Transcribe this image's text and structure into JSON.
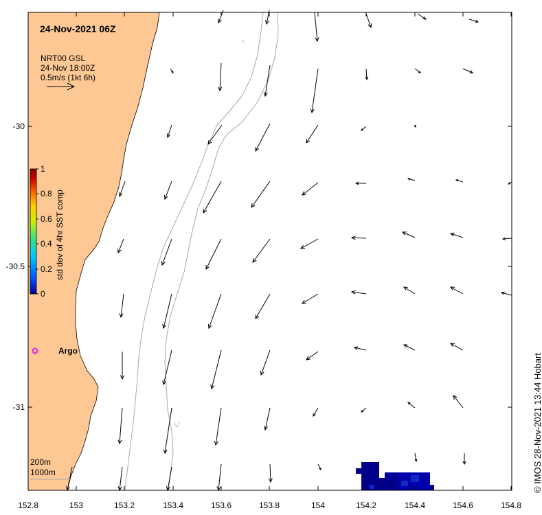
{
  "title": "24-Nov-2021 06Z",
  "vector_legend": {
    "product": "NRT00 GSL",
    "time": "24-Nov 18:00Z",
    "scale": "0.5m/s (1kt 6h)"
  },
  "colorbar": {
    "label": "std dev of 4hr SST comp",
    "ticks": [
      "0",
      "0.2",
      "0.4",
      "0.6",
      "0.8",
      "1"
    ],
    "colors": [
      "#00008b",
      "#0050ff",
      "#00c8ff",
      "#40e080",
      "#c8f000",
      "#ffd000",
      "#ff6000",
      "#d00000",
      "#800000"
    ]
  },
  "axes": {
    "x_ticks": [
      "152.8",
      "153",
      "153.2",
      "153.4",
      "153.6",
      "153.8",
      "154",
      "154.2",
      "154.4",
      "154.6",
      "154.8"
    ],
    "y_ticks": [
      "-30",
      "-30.5",
      "-31"
    ],
    "xlim": [
      152.8,
      154.8
    ],
    "ylim": [
      -31.3,
      -29.59
    ]
  },
  "argo": {
    "label": "Argo",
    "lon": 152.83,
    "lat": -30.82,
    "color": "#e020e0"
  },
  "isobaths": [
    "200m",
    "1000m"
  ],
  "land_color": "#fdc894",
  "sst_patch_colors": [
    "#00008b",
    "#0000aa",
    "#1428c8"
  ],
  "credit": "© IMOS 28-Nov-2021 13:44 Hobart"
}
